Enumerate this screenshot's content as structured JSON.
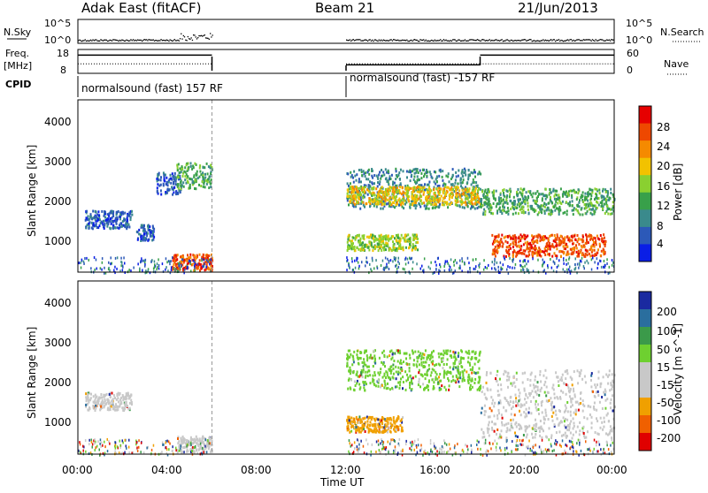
{
  "header": {
    "title": "Adak East (fitACF)",
    "beam": "Beam 21",
    "date": "21/Jun/2013"
  },
  "strip_nsky": {
    "left_label": "N.Sky",
    "right_label": "N.Search",
    "left_ticks": [
      "10^5",
      "10^0"
    ],
    "right_ticks": [
      "10^5",
      "10^0"
    ]
  },
  "strip_freq": {
    "left_label_line1": "Freq.",
    "left_label_line2": "[MHz]",
    "right_label": "Nave",
    "left_ticks": [
      "18",
      "8"
    ],
    "right_ticks": [
      "60",
      "0"
    ],
    "segments": [
      {
        "start_hour": 0.0,
        "end_hour": 6.0,
        "freq_level": 0.8,
        "nave_level": 0.35
      },
      {
        "start_hour": 12.0,
        "end_hour": 18.0,
        "freq_level": 0.3,
        "nave_level": 0.35
      },
      {
        "start_hour": 18.0,
        "end_hour": 24.0,
        "freq_level": 0.8,
        "nave_level": 0.35
      }
    ]
  },
  "cpid": {
    "label": "CPID",
    "entries": [
      {
        "text": "normalsound (fast) 157 RF",
        "start_hour": 0.0
      },
      {
        "text": "normalsound (fast) -157 RF",
        "start_hour": 12.0
      }
    ]
  },
  "time_axis": {
    "xlabel": "Time UT",
    "ticks": [
      "00:00",
      "04:00",
      "08:00",
      "12:00",
      "16:00",
      "20:00",
      "00:00"
    ],
    "range_hours": [
      0,
      24
    ],
    "gap_start_hour": 6.0,
    "gap_end_hour": 12.0
  },
  "chart_data": [
    {
      "type": "heatmap",
      "name": "power",
      "ylabel": "Slant Range [km]",
      "yticks": [
        "1000",
        "2000",
        "3000",
        "4000"
      ],
      "ylim": [
        180,
        4500
      ],
      "colorbar": {
        "label": "Power [dB]",
        "ticks": [
          "4",
          "8",
          "12",
          "16",
          "20",
          "24",
          "28"
        ],
        "colors": [
          "#0a1ee6",
          "#2c59b8",
          "#3a8a8c",
          "#38a04a",
          "#8ad030",
          "#f2c200",
          "#f58a00",
          "#ee4800",
          "#e60000"
        ]
      },
      "regions": [
        {
          "t": [
            0.3,
            2.4
          ],
          "r": [
            1300,
            1750
          ],
          "level": 1
        },
        {
          "t": [
            2.6,
            3.4
          ],
          "r": [
            1000,
            1400
          ],
          "level": 1
        },
        {
          "t": [
            3.5,
            4.6
          ],
          "r": [
            2150,
            2700
          ],
          "level": 1
        },
        {
          "t": [
            4.4,
            6.0
          ],
          "r": [
            2300,
            2950
          ],
          "level": 3
        },
        {
          "t": [
            4.2,
            6.0
          ],
          "r": [
            250,
            650
          ],
          "level": 7
        },
        {
          "t": [
            12.0,
            18.0
          ],
          "r": [
            1800,
            2800
          ],
          "level": 2
        },
        {
          "t": [
            12.0,
            18.0
          ],
          "r": [
            1900,
            2350
          ],
          "level": 5
        },
        {
          "t": [
            12.0,
            15.2
          ],
          "r": [
            750,
            1150
          ],
          "level": 4
        },
        {
          "t": [
            18.0,
            24.0
          ],
          "r": [
            1650,
            2300
          ],
          "level": 3
        },
        {
          "t": [
            18.5,
            23.6
          ],
          "r": [
            600,
            1150
          ],
          "level": 7
        }
      ]
    },
    {
      "type": "heatmap",
      "name": "velocity",
      "ylabel": "Slant Range [km]",
      "yticks": [
        "1000",
        "2000",
        "3000",
        "4000"
      ],
      "ylim": [
        180,
        4500
      ],
      "colorbar": {
        "label": "Velocity [m s^-1]",
        "ticks": [
          "200",
          "100",
          "50",
          "15",
          "-15",
          "-50",
          "-100",
          "-200"
        ],
        "colors": [
          "#1a2aa0",
          "#2a6e9e",
          "#3b9a4a",
          "#6ed030",
          "#c8c8c8",
          "#c8c8c8",
          "#f0a000",
          "#f06000",
          "#e00000"
        ]
      },
      "regions": [
        {
          "t": [
            0.3,
            2.4
          ],
          "r": [
            1300,
            1750
          ],
          "level": "neutral"
        },
        {
          "t": [
            4.4,
            6.0
          ],
          "r": [
            250,
            650
          ],
          "level": "neutral"
        },
        {
          "t": [
            12.0,
            18.0
          ],
          "r": [
            1800,
            2800
          ],
          "level": "green"
        },
        {
          "t": [
            12.0,
            14.5
          ],
          "r": [
            750,
            1150
          ],
          "level": "orange"
        },
        {
          "t": [
            18.0,
            24.0
          ],
          "r": [
            600,
            2300
          ],
          "level": "neutral"
        }
      ]
    }
  ]
}
